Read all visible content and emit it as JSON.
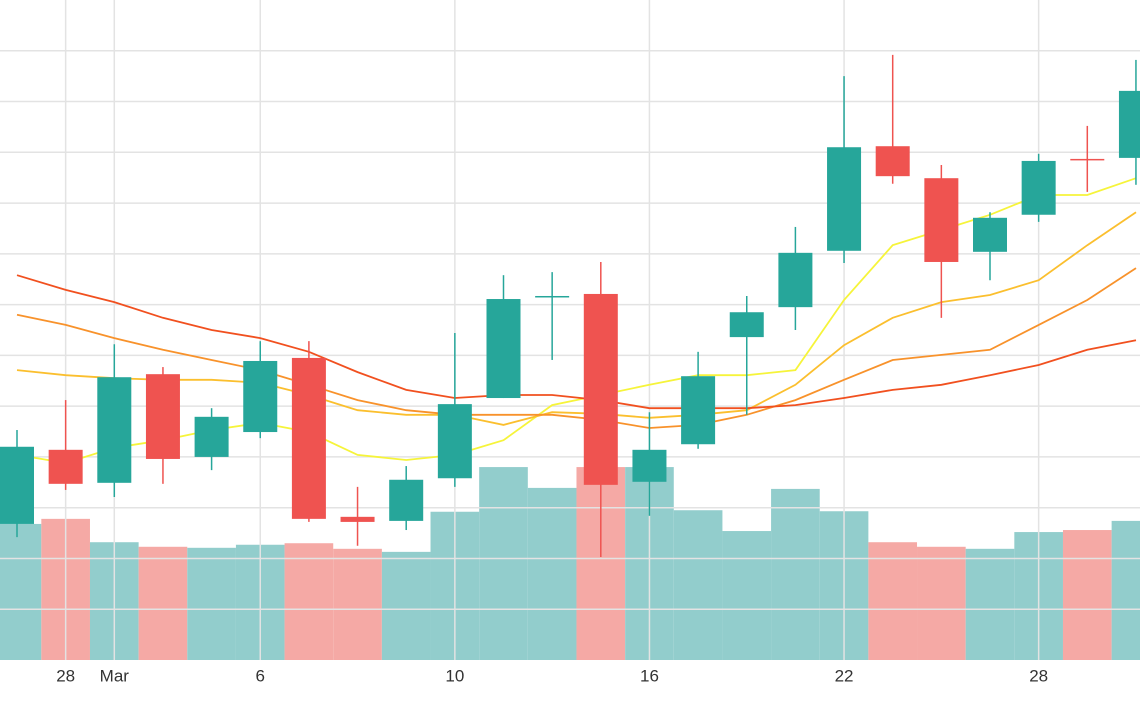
{
  "chart_data": {
    "type": "candlestick",
    "categories": [
      null,
      "28",
      "Mar",
      null,
      null,
      "6",
      null,
      null,
      null,
      "10",
      null,
      null,
      null,
      "16",
      null,
      null,
      null,
      "22",
      null,
      null,
      null,
      "28",
      null,
      null
    ],
    "open": [
      2.68,
      4.14,
      3.49,
      5.63,
      4.0,
      4.49,
      5.95,
      2.82,
      2.74,
      3.58,
      5.16,
      7.15,
      7.21,
      3.51,
      4.25,
      6.36,
      6.95,
      8.06,
      10.12,
      9.49,
      8.04,
      8.77,
      9.87,
      9.89
    ],
    "high": [
      4.53,
      5.12,
      6.22,
      5.77,
      4.96,
      6.28,
      6.28,
      3.41,
      3.82,
      6.44,
      7.58,
      7.64,
      7.84,
      4.88,
      6.07,
      7.17,
      8.53,
      11.5,
      11.92,
      9.75,
      8.82,
      9.97,
      10.52,
      11.82
    ],
    "low": [
      2.42,
      3.35,
      3.21,
      3.47,
      3.74,
      4.37,
      2.72,
      2.25,
      2.56,
      3.41,
      5.16,
      5.91,
      2.03,
      2.84,
      4.16,
      4.83,
      6.5,
      7.82,
      9.38,
      6.74,
      7.48,
      8.63,
      9.22,
      9.36
    ],
    "close": [
      4.2,
      3.47,
      5.57,
      3.96,
      4.79,
      5.89,
      2.78,
      2.72,
      3.55,
      5.04,
      7.11,
      7.17,
      3.45,
      4.14,
      5.59,
      6.85,
      8.02,
      10.1,
      9.53,
      7.84,
      8.71,
      9.83,
      9.85,
      11.21
    ],
    "volume": [
      2.68,
      2.78,
      2.32,
      2.23,
      2.21,
      2.27,
      2.3,
      2.19,
      2.13,
      2.92,
      3.8,
      3.39,
      3.8,
      3.8,
      2.95,
      2.54,
      3.37,
      2.93,
      2.32,
      2.23,
      2.19,
      2.52,
      2.56,
      2.74
    ],
    "lines": [
      {
        "color": "#f6f43a",
        "values": [
          4.04,
          3.88,
          4.18,
          4.33,
          4.53,
          4.67,
          4.49,
          4.04,
          3.94,
          4.04,
          4.33,
          5.02,
          5.22,
          5.42,
          5.61,
          5.61,
          5.71,
          7.09,
          8.17,
          8.47,
          8.77,
          9.16,
          9.16,
          9.49
        ]
      },
      {
        "color": "#fbbf2e",
        "values": [
          5.71,
          5.61,
          5.55,
          5.52,
          5.52,
          5.46,
          5.22,
          4.92,
          4.83,
          4.83,
          4.63,
          4.88,
          4.85,
          4.77,
          4.83,
          4.92,
          5.42,
          6.2,
          6.74,
          7.05,
          7.19,
          7.48,
          8.17,
          8.82
        ]
      },
      {
        "color": "#f8922b",
        "values": [
          6.8,
          6.6,
          6.34,
          6.11,
          5.91,
          5.71,
          5.42,
          5.12,
          4.92,
          4.83,
          4.83,
          4.83,
          4.73,
          4.57,
          4.63,
          4.83,
          5.12,
          5.52,
          5.91,
          6.01,
          6.11,
          6.6,
          7.09,
          7.72
        ]
      },
      {
        "color": "#f1501f",
        "values": [
          7.58,
          7.29,
          7.05,
          6.74,
          6.5,
          6.34,
          6.07,
          5.67,
          5.32,
          5.16,
          5.22,
          5.22,
          5.12,
          4.96,
          4.96,
          4.96,
          5.02,
          5.16,
          5.32,
          5.42,
          5.61,
          5.81,
          6.11,
          6.3
        ]
      }
    ],
    "up_color": "#26a69a",
    "down_color": "#ef5350",
    "volume_up_color": "#92cdcc",
    "volume_down_color": "#f5a9a5",
    "ylim": [
      0,
      13
    ],
    "yticks": [
      1,
      2,
      3,
      4,
      5,
      6,
      7,
      8,
      9,
      10,
      11,
      12
    ],
    "y2lim": [
      0,
      13
    ],
    "grid": true
  }
}
